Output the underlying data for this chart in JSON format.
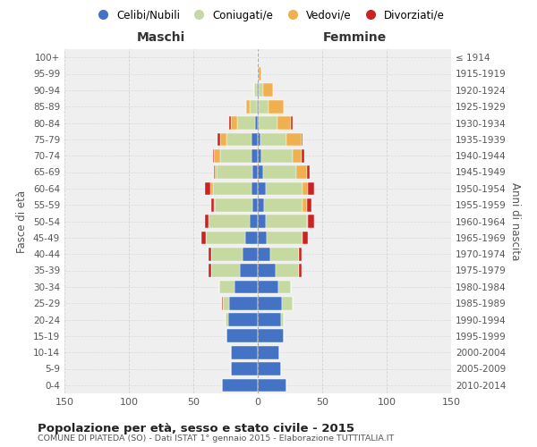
{
  "age_groups": [
    "0-4",
    "5-9",
    "10-14",
    "15-19",
    "20-24",
    "25-29",
    "30-34",
    "35-39",
    "40-44",
    "45-49",
    "50-54",
    "55-59",
    "60-64",
    "65-69",
    "70-74",
    "75-79",
    "80-84",
    "85-89",
    "90-94",
    "95-99",
    "100+"
  ],
  "birth_years": [
    "2010-2014",
    "2005-2009",
    "2000-2004",
    "1995-1999",
    "1990-1994",
    "1985-1989",
    "1980-1984",
    "1975-1979",
    "1970-1974",
    "1965-1969",
    "1960-1964",
    "1955-1959",
    "1950-1954",
    "1945-1949",
    "1940-1944",
    "1935-1939",
    "1930-1934",
    "1925-1929",
    "1920-1924",
    "1915-1919",
    "≤ 1914"
  ],
  "maschi": {
    "celibe": [
      28,
      21,
      21,
      24,
      23,
      22,
      18,
      14,
      12,
      10,
      6,
      4,
      5,
      4,
      5,
      5,
      2,
      1,
      1,
      0,
      0
    ],
    "coniugato": [
      0,
      0,
      0,
      0,
      2,
      5,
      12,
      22,
      24,
      30,
      32,
      29,
      30,
      28,
      24,
      19,
      14,
      5,
      2,
      0,
      0
    ],
    "vedovo": [
      0,
      0,
      0,
      0,
      0,
      0,
      0,
      0,
      0,
      0,
      0,
      1,
      2,
      1,
      5,
      5,
      5,
      3,
      0,
      0,
      0
    ],
    "divorziato": [
      0,
      0,
      0,
      0,
      0,
      1,
      0,
      2,
      2,
      4,
      3,
      2,
      4,
      1,
      1,
      2,
      1,
      0,
      0,
      0,
      0
    ]
  },
  "femmine": {
    "nubile": [
      22,
      18,
      17,
      20,
      18,
      19,
      16,
      14,
      10,
      7,
      6,
      5,
      6,
      4,
      3,
      2,
      1,
      1,
      1,
      0,
      0
    ],
    "coniugata": [
      0,
      0,
      0,
      0,
      2,
      8,
      10,
      18,
      22,
      28,
      32,
      30,
      29,
      26,
      24,
      20,
      14,
      7,
      3,
      1,
      0
    ],
    "vedova": [
      0,
      0,
      0,
      0,
      0,
      0,
      0,
      0,
      0,
      0,
      1,
      3,
      4,
      8,
      7,
      12,
      11,
      12,
      8,
      2,
      0
    ],
    "divorziata": [
      0,
      0,
      0,
      0,
      0,
      0,
      0,
      2,
      2,
      4,
      5,
      4,
      5,
      2,
      2,
      1,
      1,
      0,
      0,
      0,
      0
    ]
  },
  "colors": {
    "celibe": "#4472c4",
    "coniugato": "#c5d9a0",
    "vedovo": "#f0b050",
    "divorziato": "#cc2222"
  },
  "title": "Popolazione per età, sesso e stato civile - 2015",
  "subtitle": "COMUNE DI PIATEDA (SO) - Dati ISTAT 1° gennaio 2015 - Elaborazione TUTTITALIA.IT",
  "xlabel_left": "Maschi",
  "xlabel_right": "Femmine",
  "ylabel": "Fasce di età",
  "ylabel_right": "Anni di nascita",
  "xlim": 150,
  "bg_color": "#ffffff",
  "plot_bg": "#efefef",
  "grid_color": "#cccccc",
  "legend_labels": [
    "Celibi/Nubili",
    "Coniugati/e",
    "Vedovi/e",
    "Divorziati/e"
  ]
}
